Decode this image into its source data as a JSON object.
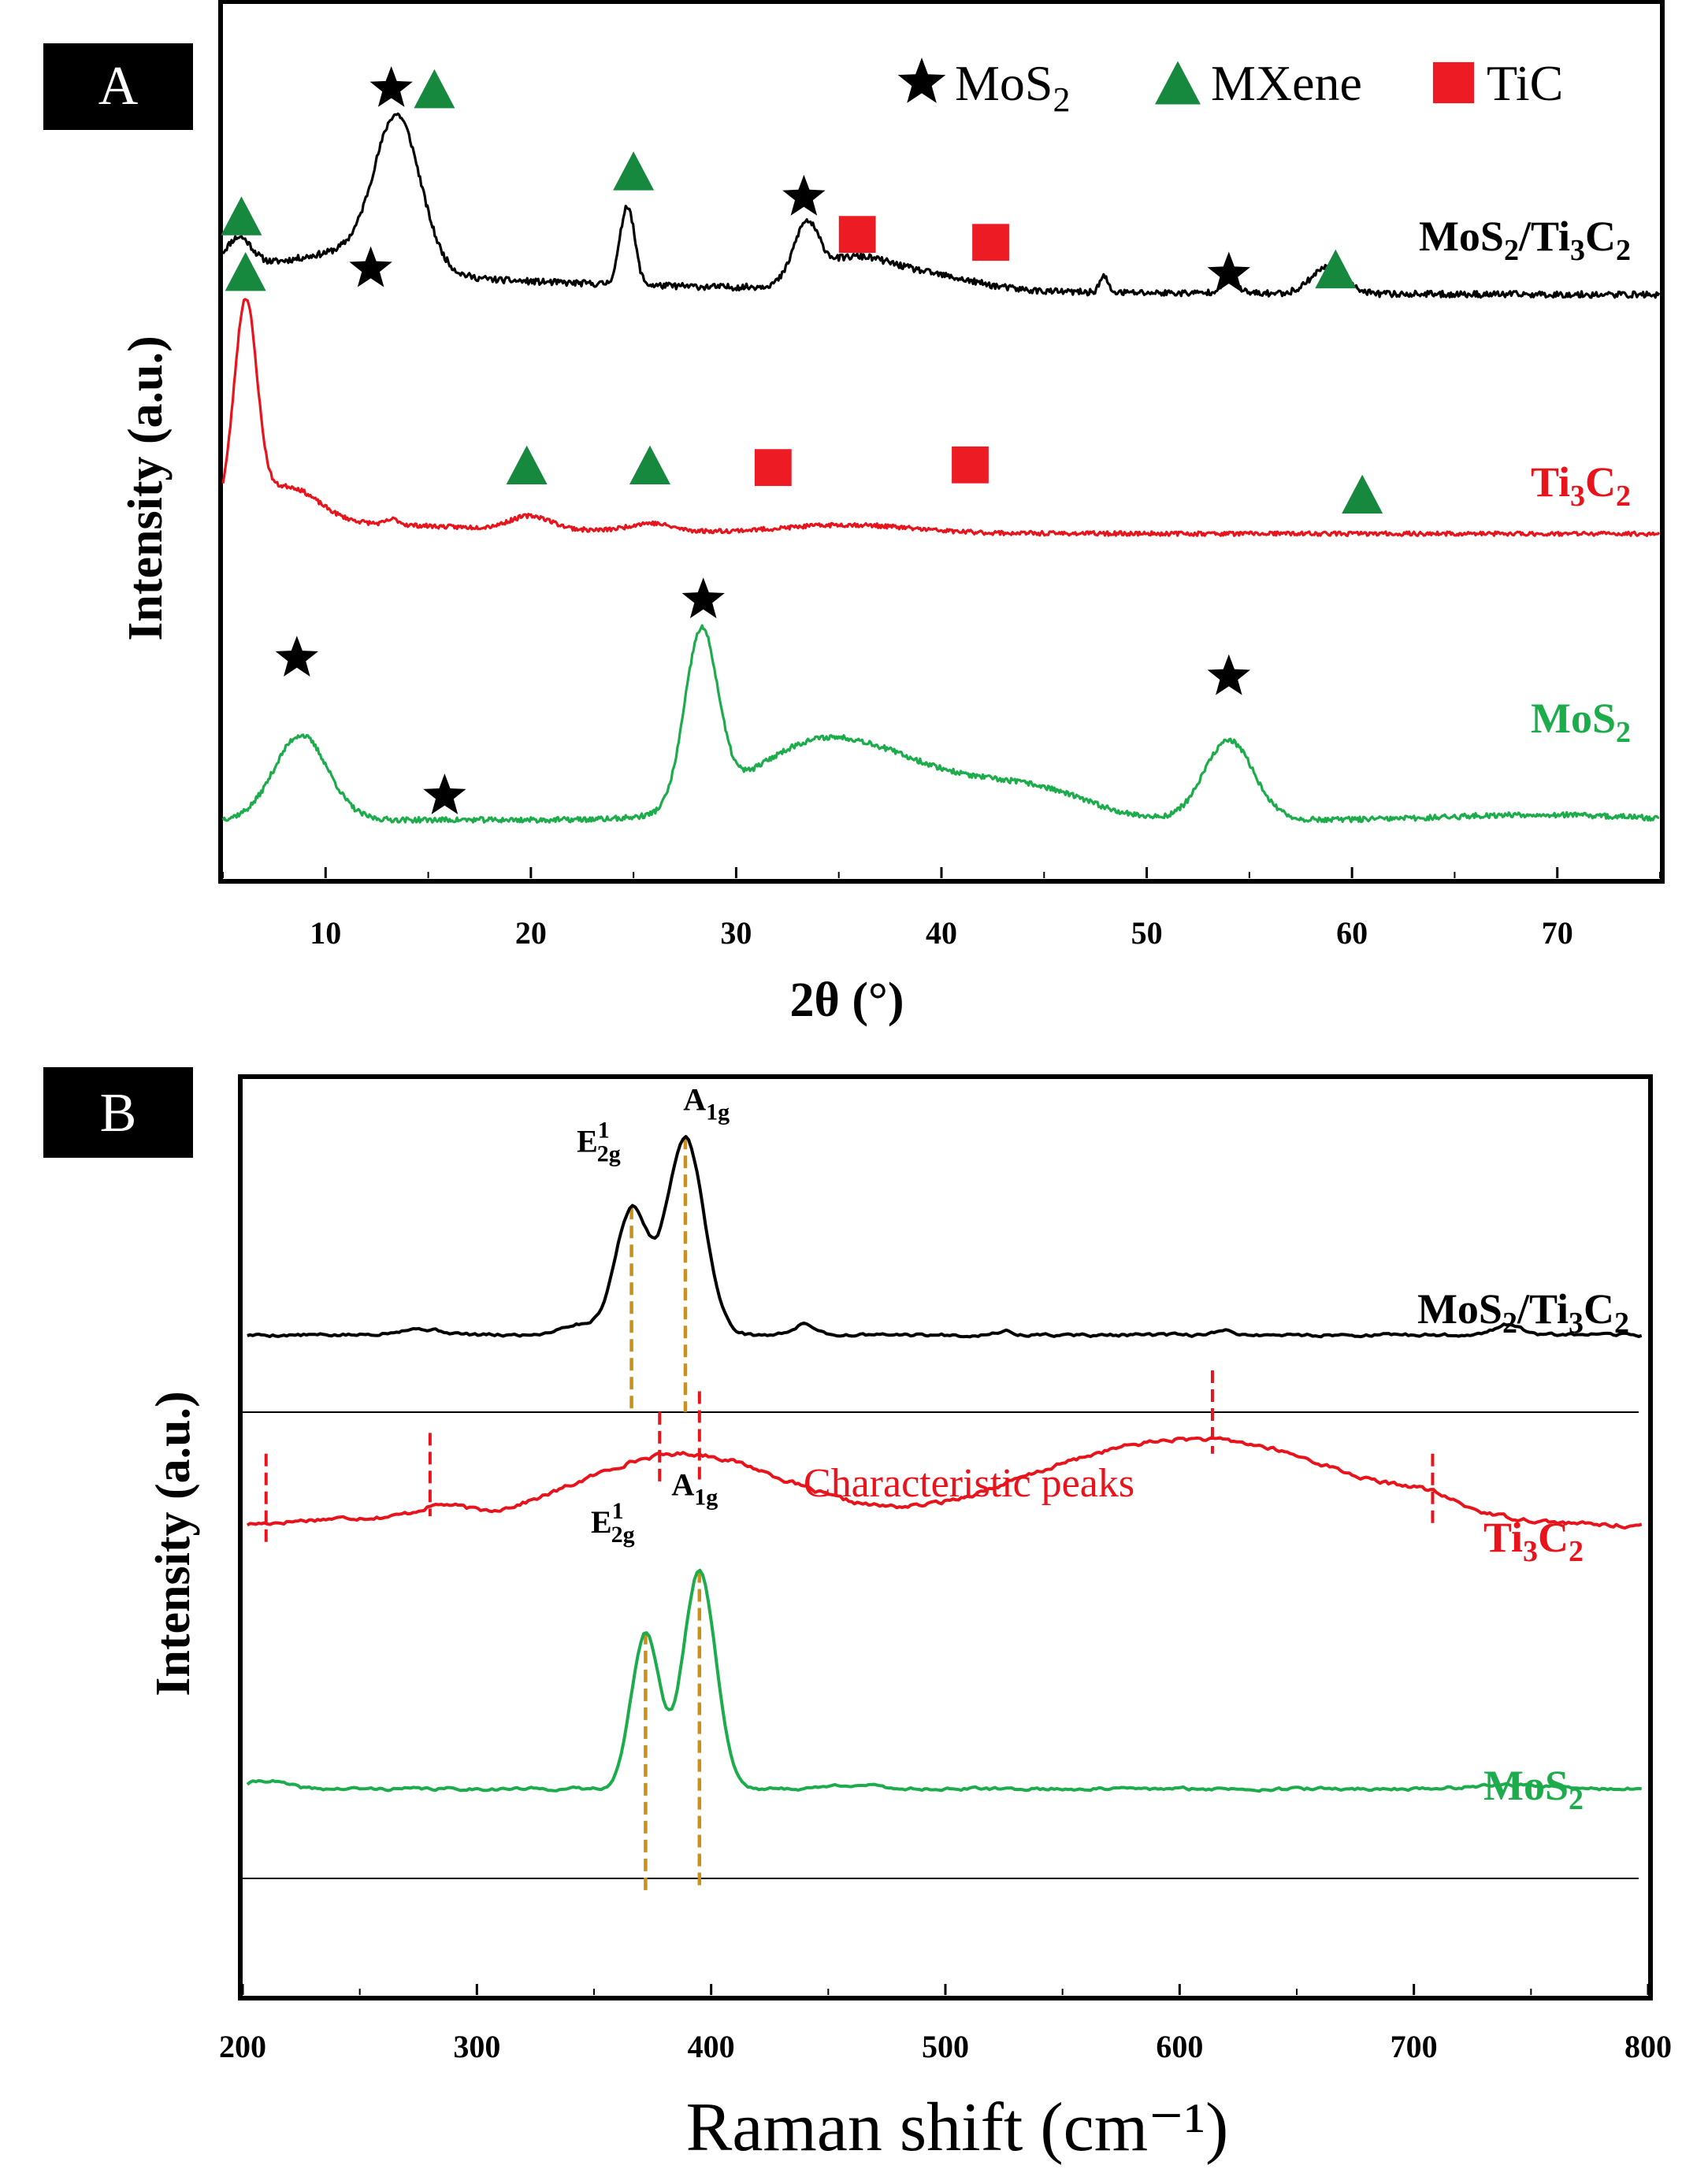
{
  "figure": {
    "colors": {
      "black": "#000000",
      "red": "#e8131b",
      "green": "#1cac4b",
      "marker_green": "#17893f",
      "guide": "#c9901a"
    }
  },
  "chart_data": [
    {
      "type": "line",
      "panel_label": "A",
      "xlabel": "2θ (°)",
      "ylabel": "Intensity (a.u.)",
      "xlim": [
        5,
        75
      ],
      "xticks": [
        10,
        20,
        30,
        40,
        50,
        60,
        70
      ],
      "legend": {
        "position": "top-right",
        "entries": [
          {
            "marker": "star",
            "base": "MoS",
            "sub": "2"
          },
          {
            "marker": "triangle",
            "base": "MXene",
            "sub": ""
          },
          {
            "marker": "square",
            "base": "TiC",
            "sub": ""
          }
        ]
      },
      "series": [
        {
          "name": "MoS2/Ti3C2",
          "label_parts": [
            [
              "MoS",
              ""
            ],
            [
              "2",
              "sub"
            ],
            [
              "/Ti",
              ""
            ],
            [
              "3",
              "sub"
            ],
            [
              "C",
              ""
            ],
            [
              "2",
              "sub"
            ]
          ],
          "color": "black",
          "offset": 2.15,
          "baseline": 0.05,
          "noise": 0.012,
          "seed": 11,
          "peaks": [
            [
              5.8,
              0.1,
              0.6
            ],
            [
              13.5,
              0.55,
              1.1
            ],
            [
              11.5,
              0.08,
              2.5
            ],
            [
              24.7,
              0.3,
              0.35
            ],
            [
              33.4,
              0.2,
              0.6
            ],
            [
              35.5,
              0.1,
              1.8
            ],
            [
              39,
              0.06,
              2.5
            ],
            [
              47.9,
              0.06,
              0.2
            ],
            [
              54,
              0.05,
              0.4
            ],
            [
              58.8,
              0.1,
              0.8
            ]
          ],
          "decay": [
            0.12,
            18
          ],
          "markers": [
            {
              "type": "star",
              "x": 13.2,
              "y": 2.98
            },
            {
              "type": "triangle",
              "x": 15.3,
              "y": 2.98
            },
            {
              "type": "triangle",
              "x": 5.9,
              "y": 2.5
            },
            {
              "type": "star",
              "x": 12.2,
              "y": 2.3
            },
            {
              "type": "triangle",
              "x": 25.0,
              "y": 2.67
            },
            {
              "type": "star",
              "x": 33.3,
              "y": 2.57
            },
            {
              "type": "square",
              "x": 35.9,
              "y": 2.43
            },
            {
              "type": "square",
              "x": 42.4,
              "y": 2.4
            },
            {
              "type": "star",
              "x": 54.0,
              "y": 2.28
            },
            {
              "type": "triangle",
              "x": 59.2,
              "y": 2.3
            }
          ]
        },
        {
          "name": "Ti3C2",
          "label_parts": [
            [
              "Ti",
              ""
            ],
            [
              "3",
              "sub"
            ],
            [
              "C",
              ""
            ],
            [
              "2",
              "sub"
            ]
          ],
          "color": "red",
          "offset": 1.3,
          "baseline": 0.0,
          "noise": 0.008,
          "seed": 23,
          "peaks": [
            [
              6.1,
              0.78,
              0.55
            ],
            [
              8.2,
              0.12,
              1.4
            ],
            [
              13.3,
              0.02,
              0.3
            ],
            [
              20,
              0.05,
              1.0
            ],
            [
              25.8,
              0.03,
              1.0
            ],
            [
              35.5,
              0.03,
              3.0
            ]
          ],
          "decay": [
            0.08,
            10
          ],
          "markers": [
            {
              "type": "triangle",
              "x": 6.1,
              "y": 2.29
            },
            {
              "type": "triangle",
              "x": 19.8,
              "y": 1.56
            },
            {
              "type": "triangle",
              "x": 25.8,
              "y": 1.56
            },
            {
              "type": "square",
              "x": 31.8,
              "y": 1.55
            },
            {
              "type": "square",
              "x": 41.4,
              "y": 1.56
            },
            {
              "type": "triangle",
              "x": 60.5,
              "y": 1.45
            }
          ]
        },
        {
          "name": "MoS2",
          "label_parts": [
            [
              "MoS",
              ""
            ],
            [
              "2",
              "sub"
            ]
          ],
          "color": "green",
          "offset": 0.22,
          "baseline": 0.0,
          "noise": 0.01,
          "seed": 37,
          "peaks": [
            [
              8.8,
              0.32,
              1.3
            ],
            [
              28.3,
              0.65,
              0.8
            ],
            [
              34,
              0.28,
              3.5
            ],
            [
              40,
              0.12,
              3.5
            ],
            [
              45,
              0.08,
              2.5
            ],
            [
              54,
              0.3,
              1.2
            ],
            [
              69,
              0.02,
              4.0
            ]
          ],
          "decay": [
            0.0,
            10
          ],
          "markers": [
            {
              "type": "star",
              "x": 8.6,
              "y": 0.83
            },
            {
              "type": "star",
              "x": 15.8,
              "y": 0.31
            },
            {
              "type": "star",
              "x": 28.4,
              "y": 1.05
            },
            {
              "type": "star",
              "x": 54.0,
              "y": 0.76
            }
          ]
        }
      ]
    },
    {
      "type": "line",
      "panel_label": "B",
      "xlabel": "Raman shift (cm⁻¹)",
      "ylabel": "Intensity (a.u.)",
      "xlim": [
        200,
        800
      ],
      "xticks": [
        200,
        300,
        400,
        500,
        600,
        700,
        800
      ],
      "annotation": "Characteristic peaks",
      "series": [
        {
          "name": "MoS2/Ti3C2",
          "label_parts": [
            [
              "MoS",
              ""
            ],
            [
              "2",
              "sub"
            ],
            [
              "/Ti",
              ""
            ],
            [
              "3",
              "sub"
            ],
            [
              "C",
              ""
            ],
            [
              "2",
              "sub"
            ]
          ],
          "color": "black",
          "offset": 2.45,
          "baseline": 0.02,
          "noise": 0.006,
          "seed": 5,
          "peaks": [
            [
              366,
              0.6,
              7
            ],
            [
              389,
              0.95,
              8
            ],
            [
              343,
              0.05,
              8
            ],
            [
              440,
              0.05,
              5
            ],
            [
              275,
              0.03,
              10
            ],
            [
              740,
              0.05,
              6
            ],
            [
              525,
              0.02,
              3
            ],
            [
              620,
              0.02,
              4
            ]
          ],
          "guides": [
            366,
            389
          ],
          "peak_labels": [
            {
              "x": 352,
              "y": 3.35,
              "base": "E",
              "sup": "1",
              "sub": "2g"
            },
            {
              "x": 398,
              "y": 3.55,
              "base": "A",
              "sup": "",
              "sub": "1g"
            }
          ]
        },
        {
          "name": "Ti3C2",
          "label_parts": [
            [
              "Ti",
              ""
            ],
            [
              "3",
              "sub"
            ],
            [
              "C",
              ""
            ],
            [
              "2",
              "sub"
            ]
          ],
          "color": "red",
          "offset": 1.55,
          "baseline": 0.0,
          "noise": 0.008,
          "seed": 17,
          "peaks": [
            [
              388,
              0.35,
              45
            ],
            [
              250,
              0.04,
              30
            ],
            [
              285,
              0.06,
              10
            ],
            [
              615,
              0.4,
              60
            ],
            [
              545,
              0.08,
              40
            ],
            [
              705,
              0.05,
              12
            ]
          ],
          "dashes": [
            [
              210,
              1.45,
              1.9
            ],
            [
              280,
              1.6,
              2.0
            ],
            [
              378,
              1.75,
              2.1
            ],
            [
              395,
              1.75,
              2.2
            ],
            [
              614,
              1.9,
              2.3
            ],
            [
              708,
              1.55,
              1.9
            ]
          ]
        },
        {
          "name": "MoS2",
          "label_parts": [
            [
              "MoS",
              ""
            ],
            [
              "2",
              "sub"
            ]
          ],
          "color": "green",
          "offset": 0.25,
          "baseline": 0.04,
          "noise": 0.006,
          "seed": 41,
          "peaks": [
            [
              372,
              0.75,
              6
            ],
            [
              395,
              1.05,
              7
            ],
            [
              210,
              0.04,
              8
            ],
            [
              460,
              0.02,
              10
            ],
            [
              740,
              0.02,
              15
            ]
          ],
          "guides": [
            372,
            395
          ],
          "peak_labels": [
            {
              "x": 358,
              "y": 1.52,
              "base": "E",
              "sup": "1",
              "sub": "2g"
            },
            {
              "x": 393,
              "y": 1.7,
              "base": "A",
              "sup": "",
              "sub": "1g"
            }
          ]
        }
      ]
    }
  ]
}
